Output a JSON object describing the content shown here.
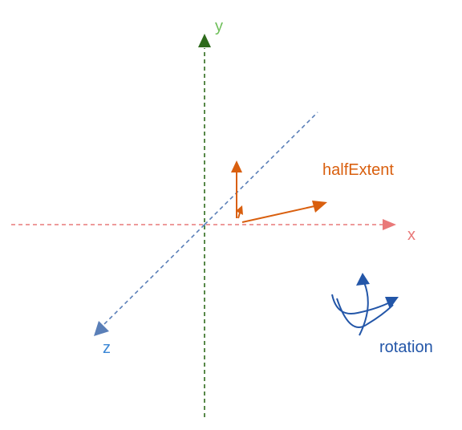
{
  "labels": {
    "x_axis": "x",
    "y_axis": "y",
    "z_axis": "z",
    "half_extent": "halfExtent",
    "rotation": "rotation"
  },
  "colors": {
    "x_axis": "#e97979",
    "y_axis": "#2e6b1c",
    "y_label": "#6fbf5a",
    "z_axis": "#5a7fb8",
    "z_label": "#3a87d6",
    "half_extent": "#d95f0e",
    "rotation": "#2356a8"
  }
}
